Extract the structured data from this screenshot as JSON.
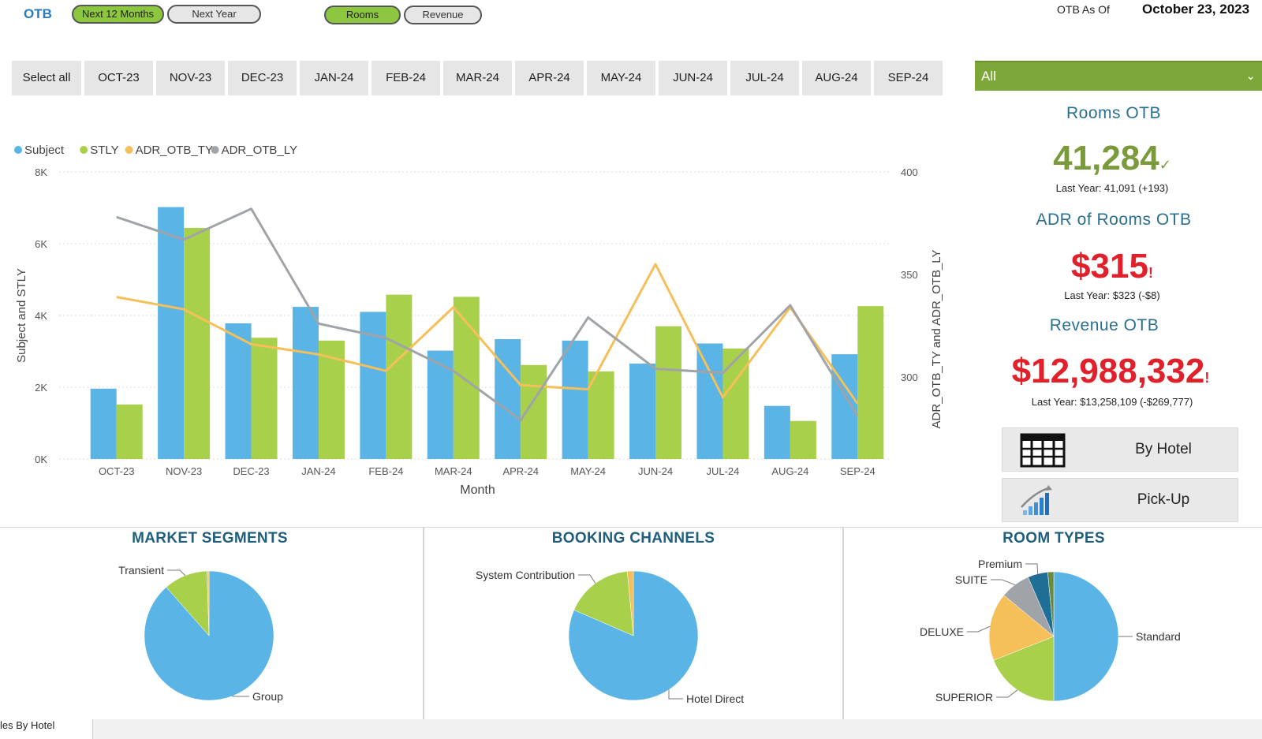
{
  "header": {
    "title": "OTB",
    "period_buttons": [
      {
        "label": "Next 12 Months",
        "active": true
      },
      {
        "label": "Next Year",
        "active": false
      }
    ],
    "metric_buttons": [
      {
        "label": "Rooms",
        "active": true
      },
      {
        "label": "Revenue",
        "active": false
      }
    ],
    "asof_label": "OTB As Of",
    "asof_date": "October 23, 2023"
  },
  "month_slicer": [
    "Select all",
    "OCT-23",
    "NOV-23",
    "DEC-23",
    "JAN-24",
    "FEB-24",
    "MAR-24",
    "APR-24",
    "MAY-24",
    "JUN-24",
    "JUL-24",
    "AUG-24",
    "SEP-24"
  ],
  "hotel_dropdown": {
    "value": "All"
  },
  "chart_data": {
    "type": "bar",
    "categories": [
      "OCT-23",
      "NOV-23",
      "DEC-23",
      "JAN-24",
      "FEB-24",
      "MAR-24",
      "APR-24",
      "MAY-24",
      "JUN-24",
      "JUL-24",
      "AUG-24",
      "SEP-24"
    ],
    "series": [
      {
        "name": "Subject",
        "type": "bar",
        "axis": "left",
        "color": "#5ab4e5",
        "values": [
          1960,
          7020,
          3780,
          4240,
          4100,
          3020,
          3340,
          3300,
          2660,
          3220,
          1480,
          2920
        ]
      },
      {
        "name": "STLY",
        "type": "bar",
        "axis": "left",
        "color": "#a8d04a",
        "values": [
          1520,
          6440,
          3380,
          3300,
          4580,
          4520,
          2620,
          2440,
          3700,
          3080,
          1060,
          4260
        ]
      },
      {
        "name": "ADR_OTB_TY",
        "type": "line",
        "axis": "right",
        "color": "#f5bf5a",
        "values": [
          339,
          333,
          316,
          311,
          303,
          334,
          296,
          294,
          355,
          290,
          334,
          287
        ]
      },
      {
        "name": "ADR_OTB_LY",
        "type": "line",
        "axis": "right",
        "color": "#a0a4a8",
        "values": [
          378,
          367,
          382,
          326,
          319,
          303,
          279,
          329,
          304,
          302,
          335,
          281
        ]
      }
    ],
    "xlabel": "Month",
    "ylabel": "Subject and STLY",
    "y2label": "ADR_OTB_TY and ADR_OTB_LY",
    "ylim": [
      0,
      8000
    ],
    "y2lim": [
      260,
      400
    ],
    "yticks": [
      "0K",
      "2K",
      "4K",
      "6K",
      "8K"
    ],
    "yticks_values": [
      0,
      2000,
      4000,
      6000,
      8000
    ],
    "y2ticks": [
      "300",
      "350",
      "400"
    ],
    "y2ticks_values": [
      300,
      350,
      400
    ],
    "legend_position": "top-left",
    "grid": true
  },
  "kpis": {
    "rooms": {
      "title": "Rooms OTB",
      "value": "41,284",
      "mark": "✓",
      "sub": "Last Year: 41,091 (+193)",
      "color": "#7a9a3c"
    },
    "adr": {
      "title": "ADR of Rooms OTB",
      "value": "$315",
      "mark": "!",
      "sub": "Last Year: $323 (-$8)",
      "color": "#e0202a"
    },
    "revenue": {
      "title": "Revenue OTB",
      "value": "$12,988,332",
      "mark": "!",
      "sub": "Last Year: $13,258,109 (-$269,777)",
      "color": "#e0202a"
    }
  },
  "nav_buttons": [
    {
      "label": "By Hotel",
      "icon": "table-icon"
    },
    {
      "label": "Pick-Up",
      "icon": "growth-chart-icon"
    }
  ],
  "pies": {
    "market_segments": {
      "title": "MARKET SEGMENTS",
      "slices": [
        {
          "label": "Group",
          "value": 88.5,
          "color": "#5ab4e5"
        },
        {
          "label": "Transient",
          "value": 11,
          "color": "#a8d04a"
        },
        {
          "label": "",
          "value": 0.5,
          "color": "#f5bf5a"
        }
      ]
    },
    "booking_channels": {
      "title": "BOOKING CHANNELS",
      "slices": [
        {
          "label": "Hotel Direct",
          "value": 81.5,
          "color": "#5ab4e5"
        },
        {
          "label": "System Contribution",
          "value": 17,
          "color": "#a8d04a"
        },
        {
          "label": "",
          "value": 1.5,
          "color": "#f5bf5a"
        }
      ]
    },
    "room_types": {
      "title": "ROOM TYPES",
      "slices": [
        {
          "label": "Standard",
          "value": 50,
          "color": "#5ab4e5"
        },
        {
          "label": "SUPERIOR",
          "value": 19,
          "color": "#a8d04a"
        },
        {
          "label": "DELUXE",
          "value": 17,
          "color": "#f5bf5a"
        },
        {
          "label": "SUITE",
          "value": 7.5,
          "color": "#a0a4a8"
        },
        {
          "label": "Premium",
          "value": 5,
          "color": "#1f6e96"
        },
        {
          "label": "",
          "value": 1.5,
          "color": "#6c8a3c"
        }
      ]
    }
  },
  "bottom_tab": {
    "label": "les By Hotel"
  }
}
